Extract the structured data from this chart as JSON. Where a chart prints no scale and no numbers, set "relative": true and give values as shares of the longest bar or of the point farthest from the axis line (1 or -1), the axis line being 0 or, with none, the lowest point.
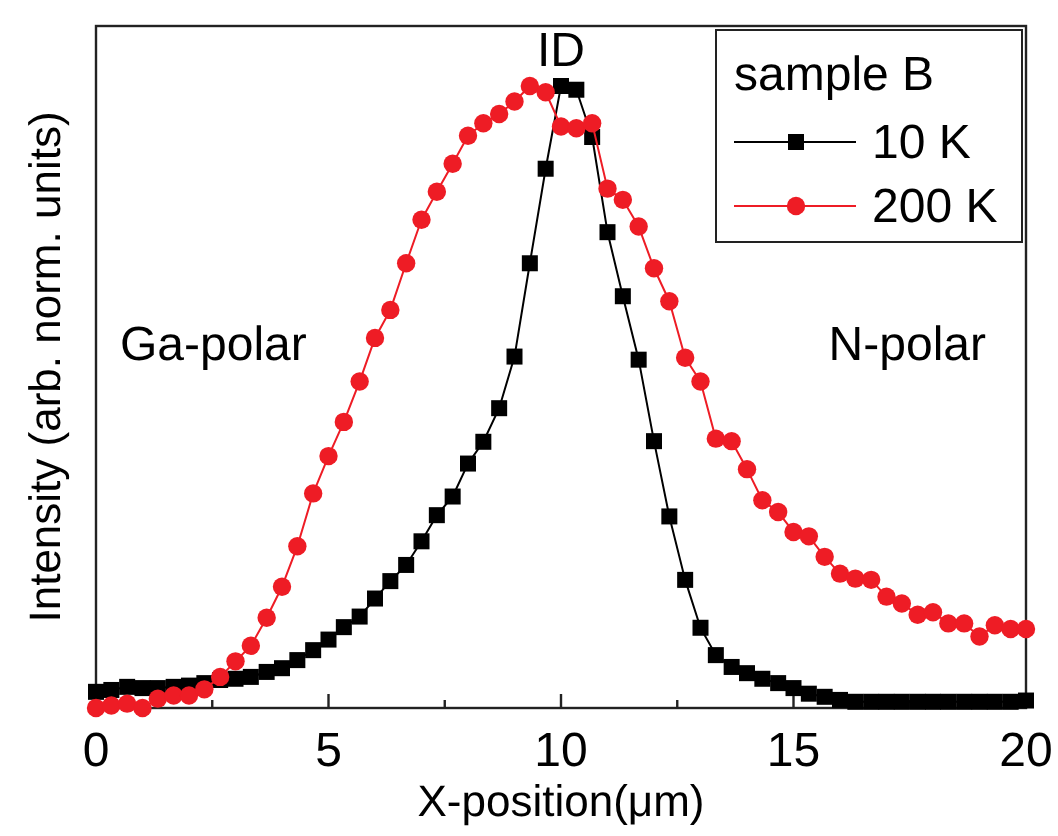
{
  "chart_data": {
    "type": "line",
    "relative": true,
    "xlabel": "X-position(μm)",
    "ylabel": "Intensity (arb. norm. units)",
    "legend_title": "sample B",
    "legend": "top right",
    "tick_labels": "x",
    "grid": false,
    "xlim": [
      0,
      20
    ],
    "xticks": [
      0,
      {
        "value": 2.5,
        "label": null
      },
      5,
      {
        "value": 7.5,
        "label": null
      },
      10,
      {
        "value": 12.5,
        "label": null
      },
      15,
      {
        "value": 17.5,
        "label": null
      },
      20
    ],
    "x": [
      0,
      0.33,
      0.67,
      1,
      1.33,
      1.67,
      2,
      2.33,
      2.67,
      3,
      3.33,
      3.67,
      4,
      4.33,
      4.67,
      5,
      5.33,
      5.67,
      6,
      6.33,
      6.67,
      7,
      7.33,
      7.67,
      8,
      8.33,
      8.67,
      9,
      9.33,
      9.67,
      10,
      10.33,
      10.67,
      11,
      11.33,
      11.67,
      12,
      12.33,
      12.67,
      13,
      13.33,
      13.67,
      14,
      14.33,
      14.67,
      15,
      15.33,
      15.67,
      16,
      16.33,
      16.67,
      17,
      17.33,
      17.67,
      18,
      18.33,
      18.67,
      19,
      19.33,
      19.67,
      20
    ],
    "series": [
      {
        "name": "10 K",
        "color": "#000000",
        "marker": "square",
        "values": [
          0.026,
          0.029,
          0.034,
          0.032,
          0.032,
          0.034,
          0.036,
          0.04,
          0.045,
          0.047,
          0.05,
          0.058,
          0.064,
          0.077,
          0.093,
          0.11,
          0.13,
          0.147,
          0.176,
          0.204,
          0.23,
          0.268,
          0.31,
          0.34,
          0.393,
          0.428,
          0.482,
          0.565,
          0.715,
          0.867,
          1.0,
          0.994,
          0.918,
          0.765,
          0.662,
          0.56,
          0.429,
          0.308,
          0.206,
          0.129,
          0.085,
          0.066,
          0.056,
          0.047,
          0.04,
          0.032,
          0.023,
          0.018,
          0.013,
          0.01,
          0.01,
          0.01,
          0.01,
          0.01,
          0.01,
          0.01,
          0.01,
          0.01,
          0.01,
          0.01,
          0.012
        ]
      },
      {
        "name": "200 K",
        "color": "#ee1c25",
        "marker": "circle",
        "values": [
          0.0,
          0.004,
          0.007,
          0.0,
          0.015,
          0.02,
          0.02,
          0.03,
          0.05,
          0.075,
          0.1,
          0.145,
          0.195,
          0.26,
          0.345,
          0.405,
          0.46,
          0.525,
          0.595,
          0.64,
          0.715,
          0.785,
          0.83,
          0.875,
          0.92,
          0.94,
          0.955,
          0.975,
          1.0,
          0.99,
          0.935,
          0.932,
          0.94,
          0.835,
          0.817,
          0.774,
          0.707,
          0.654,
          0.563,
          0.525,
          0.433,
          0.429,
          0.384,
          0.334,
          0.315,
          0.283,
          0.276,
          0.243,
          0.216,
          0.208,
          0.206,
          0.179,
          0.168,
          0.15,
          0.154,
          0.136,
          0.136,
          0.115,
          0.133,
          0.127,
          0.127
        ]
      }
    ],
    "annotations": [
      {
        "text": "ID",
        "x": 10,
        "y": 1.0
      },
      "Ga-polar",
      "N-polar"
    ]
  }
}
